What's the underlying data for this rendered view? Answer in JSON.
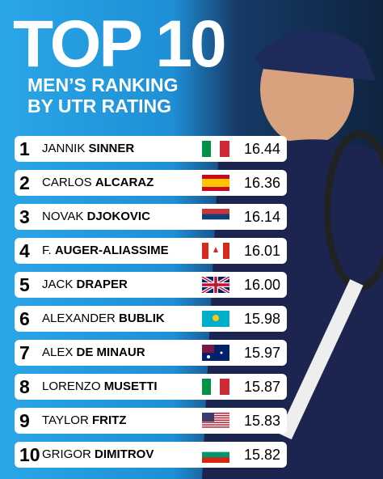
{
  "title": "TOP 10",
  "subtitle": [
    "MEN’S RANKING",
    "BY UTR RATING"
  ],
  "rows": [
    {
      "rank": 1,
      "first": "JANNIK",
      "last": "SINNER",
      "rating": "16.44"
    },
    {
      "rank": 2,
      "first": "CARLOS",
      "last": "ALCARAZ",
      "rating": "16.36"
    },
    {
      "rank": 3,
      "first": "NOVAK",
      "last": "DJOKOVIC",
      "rating": "16.14"
    },
    {
      "rank": 4,
      "first": "F.",
      "last": "AUGER-ALIASSIME",
      "rating": "16.01"
    },
    {
      "rank": 5,
      "first": "JACK",
      "last": "DRAPER",
      "rating": "16.00"
    },
    {
      "rank": 6,
      "first": "ALEXANDER",
      "last": "BUBLIK",
      "rating": "15.98"
    },
    {
      "rank": 7,
      "first": "ALEX",
      "last": "DE MINAUR",
      "rating": "15.97"
    },
    {
      "rank": 8,
      "first": "LORENZO",
      "last": "MUSETTI",
      "rating": "15.87"
    },
    {
      "rank": 9,
      "first": "TAYLOR",
      "last": "FRITZ",
      "rating": "15.83"
    },
    {
      "rank": 10,
      "first": "GRIGOR",
      "last": "DIMITROV",
      "rating": "15.82"
    }
  ]
}
